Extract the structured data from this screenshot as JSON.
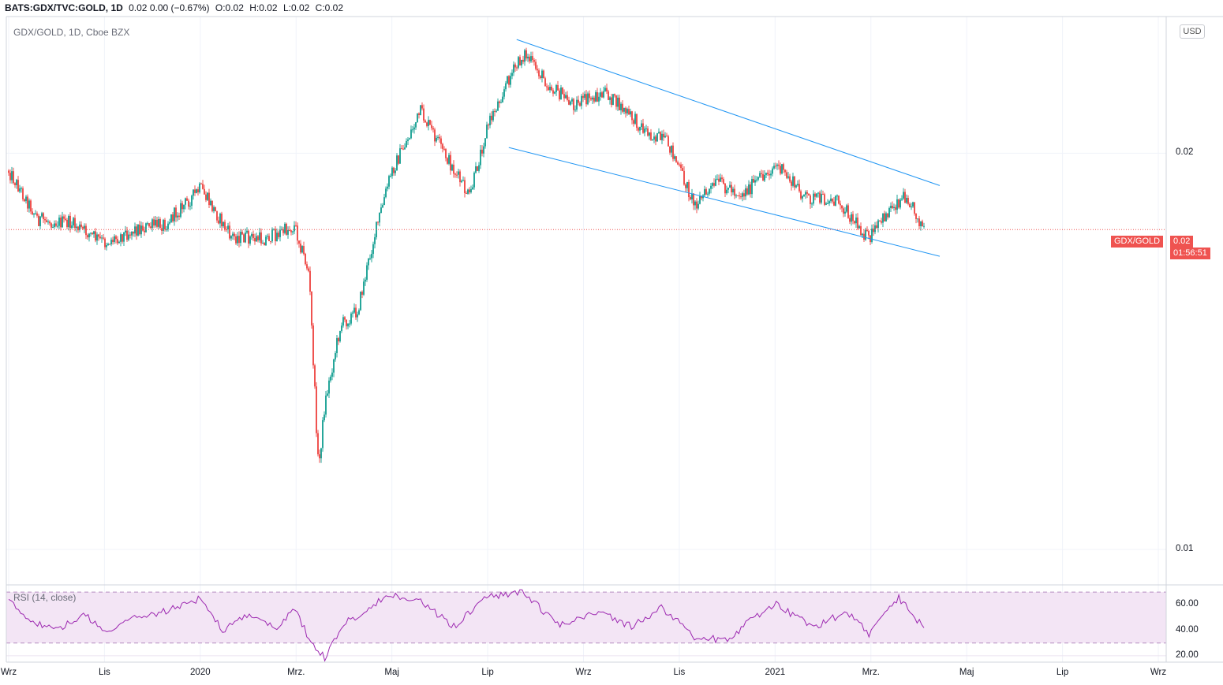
{
  "header": {
    "symbol": "BATS:GDX/TVC:GOLD, 1D",
    "change": "0.02 0.00 (−0.67%)",
    "open": "O:0.02",
    "high": "H:0.02",
    "low": "L:0.02",
    "close": "C:0.02"
  },
  "main_pane": {
    "legend": "GDX/GOLD, 1D, Cboe BZX",
    "currency_button": "USD",
    "price_label_name": "GDX/GOLD",
    "price_label_value": "0.02",
    "countdown": "01:56:51"
  },
  "rsi_pane": {
    "legend": "RSI (14, close)"
  },
  "colors": {
    "up": "#26a69a",
    "down": "#ef5350",
    "trendline": "#2196f3",
    "rsi_line": "#9c27b0",
    "rsi_band": "#f3e5f5"
  },
  "chart_data": [
    {
      "type": "candlestick",
      "title": "GDX/GOLD, 1D, Cboe BZX",
      "y_scale": "log",
      "ylim": [
        0.0094,
        0.0254
      ],
      "y_ticks": [
        {
          "label": "0.02",
          "value": 0.02
        },
        {
          "label": "0.01",
          "value": 0.01
        }
      ],
      "x_ticks": [
        "Wrz",
        "Lis",
        "2020",
        "Mrz.",
        "Maj",
        "Lip",
        "Wrz",
        "Lis",
        "2021",
        "Mrz.",
        "Maj",
        "Lip",
        "Wrz"
      ],
      "x_range": [
        "2019-09",
        "2021-09"
      ],
      "last_price": 0.0175,
      "series_polyline": [
        {
          "date": "2019-09",
          "value": 0.0194
        },
        {
          "date": "2019-09-20",
          "value": 0.0178
        },
        {
          "date": "2019-10-10",
          "value": 0.0177
        },
        {
          "date": "2019-11",
          "value": 0.0171
        },
        {
          "date": "2019-11-20",
          "value": 0.0175
        },
        {
          "date": "2019-12-10",
          "value": 0.0177
        },
        {
          "date": "2020-01",
          "value": 0.0188
        },
        {
          "date": "2020-01-20",
          "value": 0.0173
        },
        {
          "date": "2020-02-10",
          "value": 0.0172
        },
        {
          "date": "2020-03",
          "value": 0.0176
        },
        {
          "date": "2020-03-10",
          "value": 0.0162
        },
        {
          "date": "2020-03-16",
          "value": 0.0115
        },
        {
          "date": "2020-03-20",
          "value": 0.0129
        },
        {
          "date": "2020-03-30",
          "value": 0.0148
        },
        {
          "date": "2020-04-10",
          "value": 0.0152
        },
        {
          "date": "2020-04-20",
          "value": 0.0172
        },
        {
          "date": "2020-05",
          "value": 0.0193
        },
        {
          "date": "2020-05-20",
          "value": 0.0215
        },
        {
          "date": "2020-06-05",
          "value": 0.0199
        },
        {
          "date": "2020-06-20",
          "value": 0.0185
        },
        {
          "date": "2020-07",
          "value": 0.0209
        },
        {
          "date": "2020-07-15",
          "value": 0.0228
        },
        {
          "date": "2020-07-25",
          "value": 0.0238
        },
        {
          "date": "2020-08-10",
          "value": 0.0225
        },
        {
          "date": "2020-08-25",
          "value": 0.0218
        },
        {
          "date": "2020-09-15",
          "value": 0.0222
        },
        {
          "date": "2020-10-10",
          "value": 0.0208
        },
        {
          "date": "2020-10-25",
          "value": 0.0203
        },
        {
          "date": "2020-11-10",
          "value": 0.0183
        },
        {
          "date": "2020-11-25",
          "value": 0.019
        },
        {
          "date": "2020-12-10",
          "value": 0.0186
        },
        {
          "date": "2021-01",
          "value": 0.0196
        },
        {
          "date": "2021-01-20",
          "value": 0.0185
        },
        {
          "date": "2021-02-10",
          "value": 0.0184
        },
        {
          "date": "2021-03",
          "value": 0.0172
        },
        {
          "date": "2021-03-15",
          "value": 0.0182
        },
        {
          "date": "2021-03-25",
          "value": 0.0186
        },
        {
          "date": "2021-04-05",
          "value": 0.0175
        }
      ],
      "trendlines": [
        {
          "name": "upper",
          "start": {
            "date": "2020-07-20",
            "value": 0.0244
          },
          "end": {
            "date": "2021-04-15",
            "value": 0.0189
          }
        },
        {
          "name": "lower",
          "start": {
            "date": "2020-07-15",
            "value": 0.0202
          },
          "end": {
            "date": "2021-04-15",
            "value": 0.0167
          }
        }
      ]
    },
    {
      "type": "line",
      "title": "RSI (14, close)",
      "ylim": [
        15,
        75
      ],
      "y_ticks": [
        "60.00",
        "40.00",
        "20.00"
      ],
      "bands": {
        "upper": 70,
        "lower": 30
      },
      "x_range": [
        "2019-09",
        "2021-09"
      ],
      "series": [
        {
          "points": [
            {
              "date": "2019-09",
              "value": 63
            },
            {
              "date": "2019-09-15",
              "value": 48
            },
            {
              "date": "2019-10-01",
              "value": 40
            },
            {
              "date": "2019-10-20",
              "value": 52
            },
            {
              "date": "2019-11",
              "value": 38
            },
            {
              "date": "2019-11-20",
              "value": 50
            },
            {
              "date": "2019-12-10",
              "value": 55
            },
            {
              "date": "2020-01",
              "value": 65
            },
            {
              "date": "2020-01-15",
              "value": 40
            },
            {
              "date": "2020-02-01",
              "value": 52
            },
            {
              "date": "2020-02-20",
              "value": 42
            },
            {
              "date": "2020-03",
              "value": 58
            },
            {
              "date": "2020-03-10",
              "value": 33
            },
            {
              "date": "2020-03-20",
              "value": 18
            },
            {
              "date": "2020-04",
              "value": 45
            },
            {
              "date": "2020-04-20",
              "value": 60
            },
            {
              "date": "2020-05",
              "value": 68
            },
            {
              "date": "2020-05-20",
              "value": 62
            },
            {
              "date": "2020-06-10",
              "value": 43
            },
            {
              "date": "2020-07",
              "value": 66
            },
            {
              "date": "2020-07-25",
              "value": 70
            },
            {
              "date": "2020-08-15",
              "value": 44
            },
            {
              "date": "2020-09-10",
              "value": 55
            },
            {
              "date": "2020-10-01",
              "value": 43
            },
            {
              "date": "2020-10-20",
              "value": 58
            },
            {
              "date": "2020-11-10",
              "value": 35
            },
            {
              "date": "2020-12-01",
              "value": 32
            },
            {
              "date": "2020-12-20",
              "value": 52
            },
            {
              "date": "2021-01",
              "value": 60
            },
            {
              "date": "2021-01-25",
              "value": 42
            },
            {
              "date": "2021-02-15",
              "value": 55
            },
            {
              "date": "2021-03",
              "value": 37
            },
            {
              "date": "2021-03-20",
              "value": 65
            },
            {
              "date": "2021-04-05",
              "value": 42
            }
          ]
        }
      ]
    }
  ]
}
